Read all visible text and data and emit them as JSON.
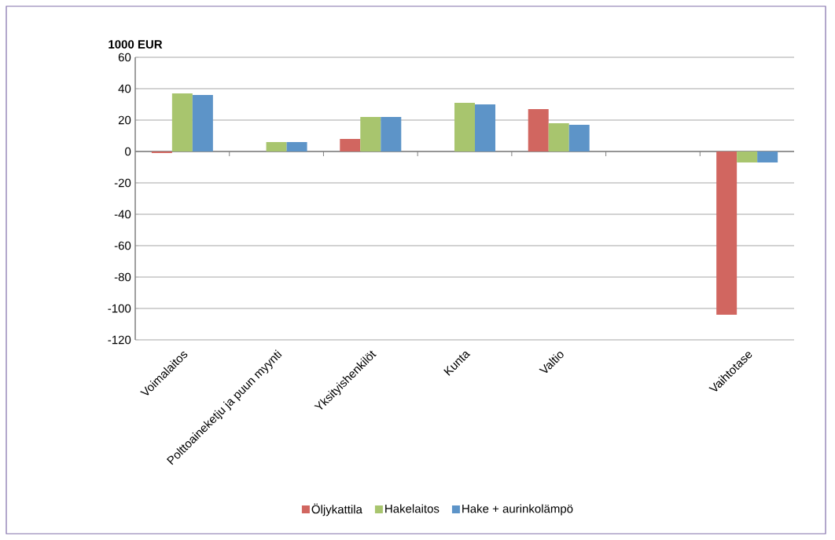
{
  "chart_data": {
    "type": "bar",
    "ylabel": "1000 EUR",
    "categories": [
      "Voimalaitos",
      "Polttoaineketju ja puun myynti",
      "Yksityishenkilöt",
      "Kunta",
      "Valtio",
      null,
      "Vaihtotase"
    ],
    "series": [
      {
        "name": "Öljykattila",
        "color": "#d16660",
        "values": [
          -1,
          null,
          8,
          null,
          27,
          null,
          -104
        ]
      },
      {
        "name": "Hakelaitos",
        "color": "#a8c56e",
        "values": [
          37,
          6,
          22,
          31,
          18,
          null,
          -7
        ]
      },
      {
        "name": "Hake + aurinkolämpö",
        "color": "#5d94c8",
        "values": [
          36,
          6,
          22,
          30,
          17,
          null,
          -7
        ]
      }
    ],
    "ylim": [
      -120,
      60
    ],
    "yticks": [
      -120,
      -100,
      -80,
      -60,
      -40,
      -20,
      0,
      20,
      40,
      60
    ],
    "grid": "y",
    "legend": "bottom"
  }
}
